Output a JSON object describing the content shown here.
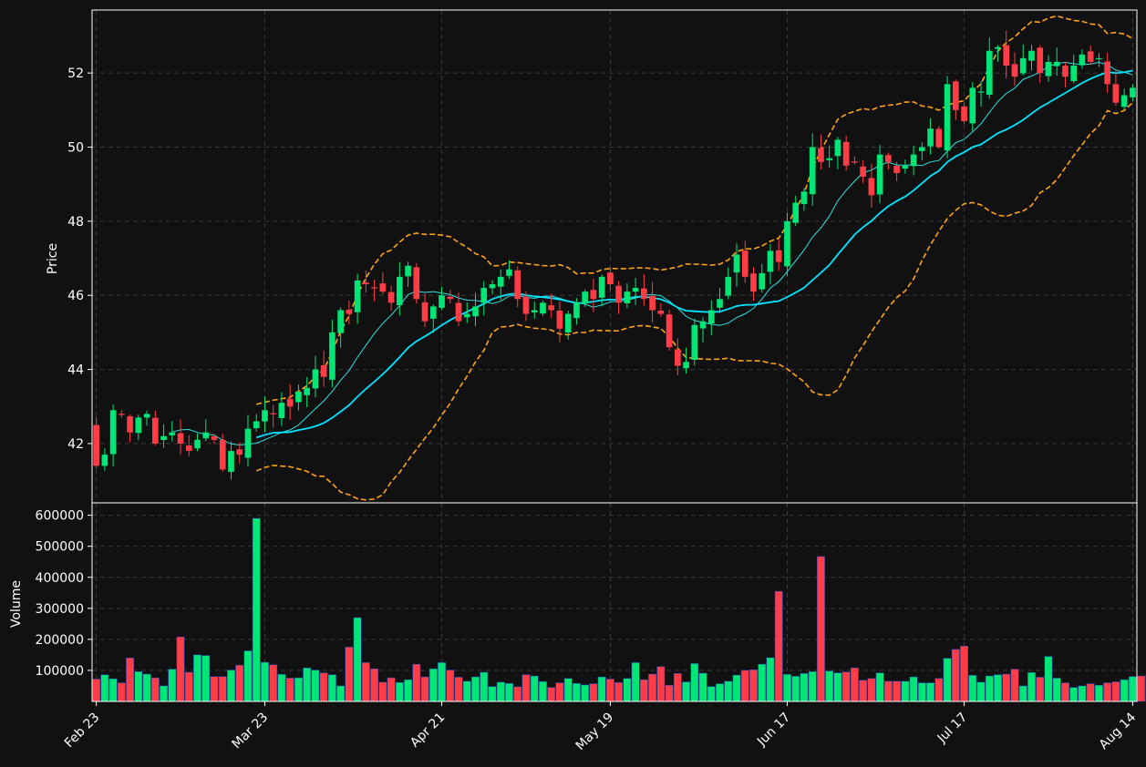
{
  "chart_data": [
    {
      "type": "candlestick",
      "ylabel": "Price",
      "ylim": [
        40.4,
        53.7
      ],
      "yticks": [
        42,
        44,
        46,
        48,
        50,
        52
      ],
      "grid": true,
      "colors": {
        "up": "#00e676",
        "down": "#ff3d47",
        "ma_fast": "#00e5ff",
        "ma_slow": "#2fe0e0",
        "bands": "#ffa31a"
      },
      "series": [
        {
          "name": "ohlc",
          "close": [
            41.4,
            41.7,
            42.9,
            42.8,
            42.3,
            42.7,
            42.8,
            42.0,
            42.2,
            42.3,
            42.0,
            41.8,
            42.1,
            42.3,
            42.1,
            41.3,
            41.8,
            41.7,
            42.4,
            42.6,
            42.9,
            42.8,
            43.1,
            43.0,
            43.4,
            43.5,
            44.0,
            43.8,
            45.0,
            45.6,
            45.5,
            46.4,
            46.3,
            46.2,
            46.1,
            45.8,
            46.5,
            46.8,
            45.9,
            45.3,
            45.7,
            46.0,
            45.9,
            45.3,
            45.5,
            45.7,
            46.2,
            46.3,
            46.5,
            46.7,
            45.9,
            45.5,
            45.6,
            45.8,
            45.6,
            45.1,
            45.5,
            45.8,
            46.1,
            45.9,
            46.5,
            46.3,
            45.8,
            46.1,
            46.2,
            45.9,
            45.6,
            45.5,
            44.6,
            44.1,
            44.2,
            45.2,
            45.3,
            45.6,
            45.9,
            46.5,
            47.1,
            46.5,
            46.1,
            46.6,
            47.2,
            46.9,
            48.0,
            48.5,
            48.8,
            50.0,
            49.6,
            49.7,
            50.2,
            49.5,
            49.6,
            49.2,
            48.7,
            49.8,
            49.6,
            49.3,
            49.5,
            49.8,
            50.0,
            50.5,
            50.0,
            51.7,
            51.0,
            50.7,
            51.6,
            51.5,
            52.6,
            52.7,
            52.2,
            51.9,
            52.4,
            52.6,
            52.0,
            52.3,
            52.3,
            51.9,
            52.2,
            52.5,
            52.3,
            52.4,
            51.7,
            51.2,
            51.4,
            51.6
          ]
        },
        {
          "name": "volume",
          "values": [
            72000,
            86000,
            73000,
            60000,
            140000,
            96000,
            88000,
            76000,
            50000,
            104000,
            208000,
            94000,
            150000,
            148000,
            80000,
            80000,
            101000,
            117000,
            163000,
            590000,
            126000,
            118000,
            87000,
            75000,
            76000,
            108000,
            101000,
            92000,
            86000,
            50000,
            175000,
            270000,
            125000,
            105000,
            62000,
            76000,
            61000,
            70000,
            120000,
            79000,
            105000,
            125000,
            101000,
            78000,
            65000,
            79000,
            94000,
            48000,
            62000,
            58000,
            47000,
            86000,
            82000,
            64000,
            45000,
            60000,
            74000,
            58000,
            53000,
            57000,
            79000,
            72000,
            61000,
            74000,
            125000,
            70000,
            88000,
            112000,
            52000,
            90000,
            63000,
            122000,
            91000,
            48000,
            57000,
            65000,
            85000,
            100000,
            102000,
            120000,
            141000,
            355000,
            87000,
            81000,
            90000,
            96000,
            467000,
            98000,
            92000,
            95000,
            108000,
            68000,
            74000,
            92000,
            65000,
            65000,
            65000,
            79000,
            60000,
            60000,
            74000,
            139000,
            168000,
            178000,
            84000,
            62000,
            82000,
            86000,
            88000,
            104000,
            50000,
            93000,
            78000,
            145000,
            75000,
            60000,
            45000,
            50000,
            57000,
            52000,
            60000,
            63000,
            70000,
            80000,
            82000,
            84000
          ]
        }
      ]
    },
    {
      "type": "bar",
      "ylabel": "Volume",
      "ylim": [
        0,
        640000
      ],
      "yticks": [
        100000,
        200000,
        300000,
        400000,
        500000,
        600000
      ],
      "xticks": [
        "Feb 23",
        "Mar 23",
        "Apr 21",
        "May 19",
        "Jun 17",
        "Jul 17",
        "Aug 14"
      ],
      "grid": true
    }
  ]
}
